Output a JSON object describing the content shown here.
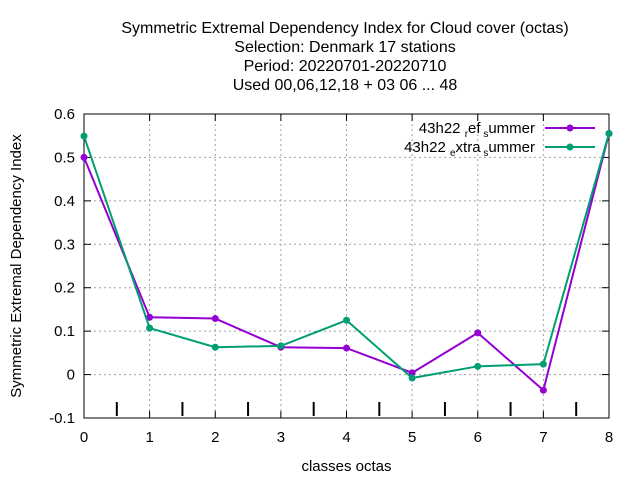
{
  "chart_data": {
    "type": "line",
    "title_lines": [
      "Symmetric Extremal Dependency Index  for Cloud cover (octas)",
      "Selection: Denmark     17 stations",
      "Period: 20220701-20220710",
      "Used  00,06,12,18  + 03 06 ... 48"
    ],
    "xlabel": "classes octas",
    "ylabel": "Symmetric Extremal Dependency Index",
    "x": [
      0,
      1,
      2,
      3,
      4,
      5,
      6,
      7,
      8
    ],
    "xlim": [
      0,
      8
    ],
    "ylim": [
      -0.1,
      0.6
    ],
    "xticks": [
      "0",
      "1",
      "2",
      "3",
      "4",
      "5",
      "6",
      "7",
      "8"
    ],
    "yticks": [
      "-0.1",
      "0",
      "0.1",
      "0.2",
      "0.3",
      "0.4",
      "0.5",
      "0.6"
    ],
    "grid": true,
    "legend_position": "top-right",
    "series": [
      {
        "legend_parts": [
          "43h22",
          "r",
          "ef",
          "s",
          "ummer"
        ],
        "color": "#9400d3",
        "values": [
          0.5,
          0.132,
          0.129,
          0.063,
          0.061,
          0.004,
          0.096,
          -0.036,
          0.555
        ]
      },
      {
        "legend_parts": [
          "43h22",
          "e",
          "xtra",
          "s",
          "ummer"
        ],
        "color": "#009e73",
        "values": [
          0.549,
          0.107,
          0.063,
          0.066,
          0.125,
          -0.008,
          0.019,
          0.024,
          0.555
        ]
      }
    ],
    "class_markers": [
      0.5,
      1.5,
      2.5,
      3.5,
      4.5,
      5.5,
      6.5,
      7.5
    ]
  }
}
